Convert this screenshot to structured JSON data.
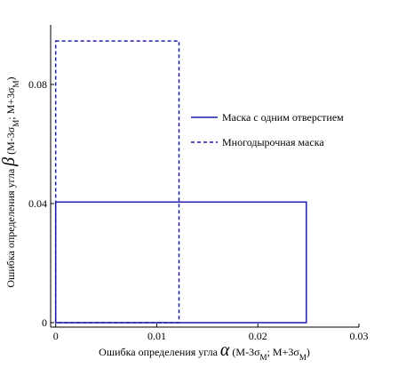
{
  "chart_data": {
    "type": "rect",
    "xlabel": [
      "Ошибка определения угла ",
      "α",
      "  (M-3σ",
      "M",
      ";  M+3σ",
      "M",
      ")"
    ],
    "ylabel": [
      "Ошибка определения угла ",
      "β",
      "  (M-3σ",
      "M",
      ";  M+3σ",
      "M",
      ")"
    ],
    "series": [
      {
        "name": "Маска с одним отверстием",
        "color": "#1c1ca8",
        "dash": false,
        "x": [
          0,
          0.0248
        ],
        "values": [
          0,
          0.0405
        ]
      },
      {
        "name": "Многодырочная маска",
        "color": "#1c1ca8",
        "dash": true,
        "x": [
          0,
          0.0122
        ],
        "values": [
          0,
          0.0946
        ]
      }
    ],
    "xlim": [
      -0.0005,
      0.03
    ],
    "xticks": [
      0,
      0.01,
      0.02,
      0.03
    ],
    "ylim": [
      -0.0015,
      0.1
    ],
    "yticks": [
      0,
      0.04,
      0.08
    ],
    "legend": "right"
  }
}
